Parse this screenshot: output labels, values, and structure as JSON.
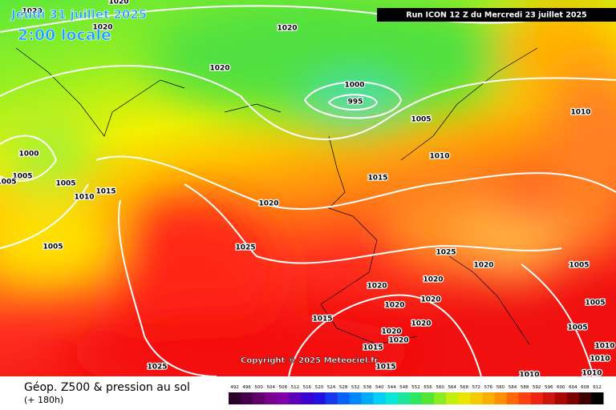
{
  "header": {
    "date": "Jeudi 31 juillet 2025",
    "time": "2:00 locale",
    "run": "Run ICON 12 Z du Mercredi 23 juillet 2025"
  },
  "isobar_labels": [
    "1020",
    "1020",
    "1020",
    "1020",
    "1020",
    "1000",
    "995",
    "1005",
    "1010",
    "1000",
    "1005",
    "1005",
    "1005",
    "1010",
    "1015",
    "1010",
    "1015",
    "1020",
    "1025",
    "1005",
    "1025",
    "1020",
    "1005",
    "1020",
    "1020",
    "1020",
    "1020",
    "1005",
    "1015",
    "1005",
    "1020",
    "1020",
    "1020",
    "1010",
    "1015",
    "1010",
    "1015",
    "1025",
    "1010",
    "1010"
  ],
  "footer": {
    "copyright": "Copyright © 2025 Meteociel.fr",
    "title": "Géop. Z500 & pression au sol",
    "lead": "(+ 180h)"
  },
  "scale": {
    "ticks": [
      492,
      496,
      500,
      504,
      508,
      512,
      516,
      520,
      524,
      528,
      532,
      536,
      540,
      544,
      548,
      552,
      556,
      560,
      564,
      568,
      572,
      576,
      580,
      584,
      588,
      592,
      596,
      600,
      604,
      608,
      612
    ]
  }
}
